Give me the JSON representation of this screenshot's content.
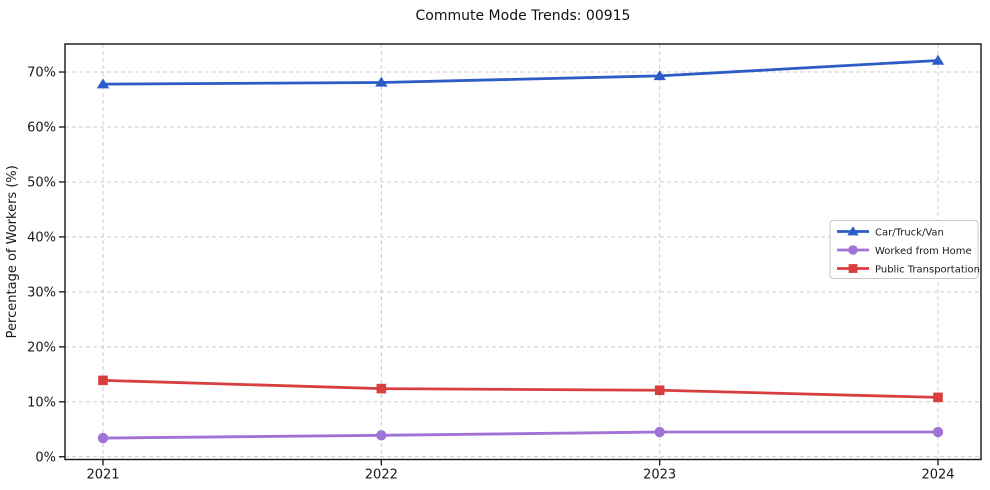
{
  "chart_data": {
    "type": "line",
    "title": "Commute Mode Trends: 00915",
    "x": [
      "2021",
      "2022",
      "2023",
      "2024"
    ],
    "series": [
      {
        "name": "Car/Truck/Van",
        "marker": "triangle",
        "color": "#2c5cc5",
        "values": [
          67.8,
          68.1,
          69.3,
          72.1
        ]
      },
      {
        "name": "Worked from Home",
        "marker": "circle",
        "color": "#a173d6",
        "values": [
          3.4,
          3.9,
          4.5,
          4.5
        ]
      },
      {
        "name": "Public Transportation",
        "marker": "square",
        "color": "#d93e3e",
        "values": [
          13.9,
          12.4,
          12.1,
          10.8
        ]
      }
    ],
    "xlabel": "",
    "ylabel": "Percentage of Workers (%)",
    "ylim": [
      -0.5,
      75.1
    ],
    "yticks": [
      0,
      10,
      20,
      30,
      40,
      50,
      60,
      70
    ],
    "ytick_suffix": "%",
    "grid": true,
    "grid_style": "dashed",
    "legend_position": "middle-right",
    "colors": {
      "grid": "#cccccc",
      "spine": "#151515",
      "text": "#1a1a1a",
      "background": "#ffffff",
      "legend_border": "#c8c8c8"
    }
  }
}
